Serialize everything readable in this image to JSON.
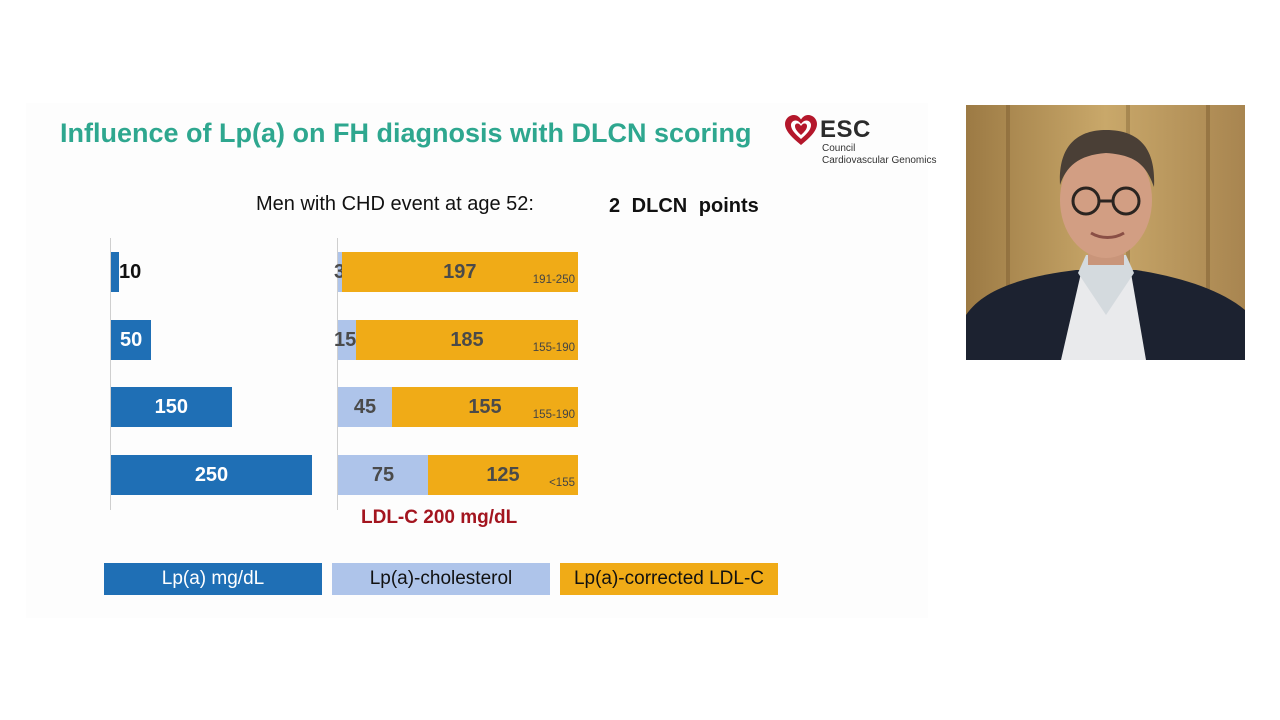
{
  "slide": {
    "title": "Influence of Lp(a) on FH diagnosis with DLCN scoring",
    "logo": {
      "name": "ESC",
      "line1": "Council",
      "line2": "Cardiovascular Genomics"
    },
    "subtitle": "Men with CHD event at age 52:",
    "points": "2   DLCN points",
    "ldl_label": "LDL-C 200 mg/dL",
    "legend": {
      "lp": "Lp(a)  mg/dL",
      "chol": "Lp(a)-cholesterol",
      "corrected": "Lp(a)-corrected LDL-C"
    },
    "colors": {
      "title": "#2ea78f",
      "lp": "#1f6fb5",
      "chol": "#aec4ea",
      "corrected": "#f0ab17",
      "ldl": "#a3151f"
    }
  },
  "chart_data": {
    "type": "bar",
    "rows": [
      {
        "lp_a": 10,
        "lp_a_chol": 3,
        "corrected_ldl": 197,
        "range": "191-250"
      },
      {
        "lp_a": 50,
        "lp_a_chol": 15,
        "corrected_ldl": 185,
        "range": "155-190"
      },
      {
        "lp_a": 150,
        "lp_a_chol": 45,
        "corrected_ldl": 155,
        "range": "155-190"
      },
      {
        "lp_a": 250,
        "lp_a_chol": 75,
        "corrected_ldl": 125,
        "range": "<155"
      }
    ],
    "lp_a_max": 250,
    "ldl_total": 200
  },
  "video": {
    "icon": "presenter-video-feed"
  }
}
